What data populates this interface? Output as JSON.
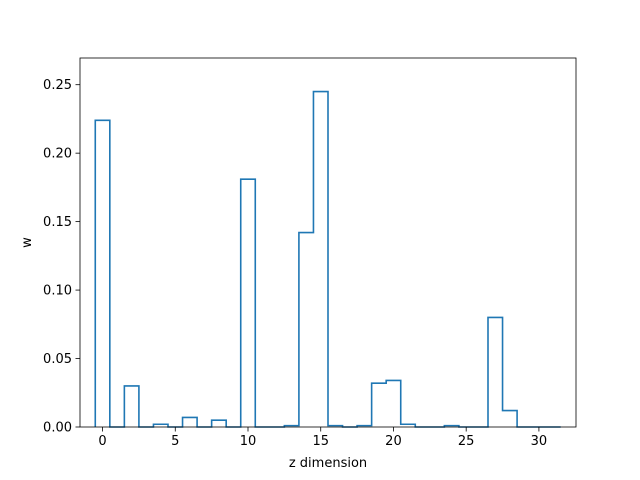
{
  "chart_data": {
    "type": "step",
    "title": "",
    "xlabel": "z dimension",
    "ylabel": "w",
    "xlim": [
      -1.55,
      32.55
    ],
    "ylim": [
      0,
      0.2695
    ],
    "xticks": [
      0,
      5,
      10,
      15,
      20,
      25,
      30
    ],
    "yticks": [
      0.0,
      0.05,
      0.1,
      0.15,
      0.2,
      0.25
    ],
    "ytick_labels": [
      "0.00",
      "0.05",
      "0.10",
      "0.15",
      "0.20",
      "0.25"
    ],
    "grid": false,
    "legend": "none",
    "line_color": "#1f77b4",
    "x": [
      0,
      1,
      2,
      3,
      4,
      5,
      6,
      7,
      8,
      9,
      10,
      11,
      12,
      13,
      14,
      15,
      16,
      17,
      18,
      19,
      20,
      21,
      22,
      23,
      24,
      25,
      26,
      27,
      28,
      29,
      30,
      31
    ],
    "values": [
      0.224,
      0.0,
      0.03,
      0.0,
      0.002,
      0.0,
      0.007,
      0.0,
      0.005,
      0.0,
      0.181,
      0.0,
      0.0,
      0.001,
      0.142,
      0.245,
      0.001,
      0.0,
      0.001,
      0.032,
      0.034,
      0.002,
      0.0,
      0.0,
      0.001,
      0.0,
      0.0,
      0.08,
      0.012,
      0.0,
      0.0,
      0.0
    ]
  }
}
